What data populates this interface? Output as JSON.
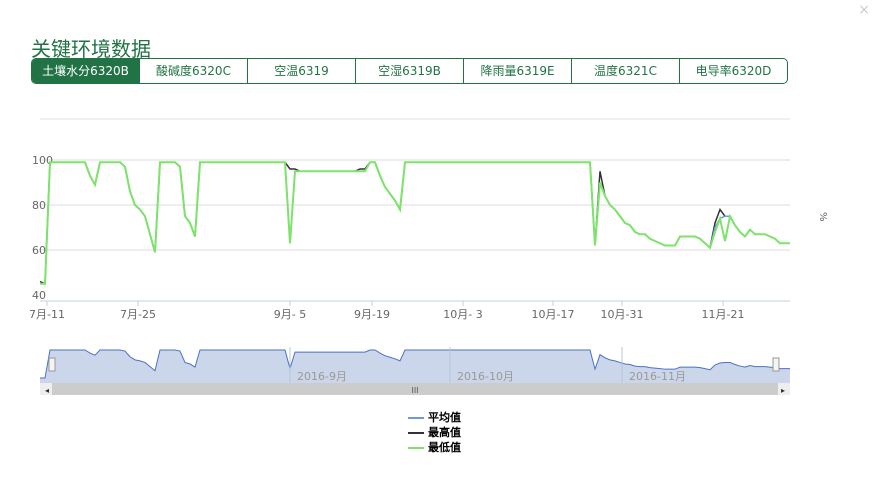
{
  "dialog": {
    "close": "×",
    "title": "关键环境数据"
  },
  "tabs": [
    {
      "label": "土壤水分6320B",
      "active": true
    },
    {
      "label": "酸碱度6320C"
    },
    {
      "label": "空温6319"
    },
    {
      "label": "空湿6319B"
    },
    {
      "label": "降雨量6319E"
    },
    {
      "label": "温度6321C"
    },
    {
      "label": "电导率6320D"
    }
  ],
  "chart_data": {
    "type": "line",
    "ylabel": "%",
    "ylim": [
      40,
      120
    ],
    "grid": true,
    "yticks": [
      40,
      60,
      80,
      100
    ],
    "xticks": [
      {
        "label": "7月-11",
        "at": 1.4
      },
      {
        "label": "7月-25",
        "at": 19.6
      },
      {
        "label": "9月- 5",
        "at": 50
      },
      {
        "label": "9月-19",
        "at": 66.4
      },
      {
        "label": "10月- 3",
        "at": 84.6
      },
      {
        "label": "10月-17",
        "at": 102.6
      },
      {
        "label": "10月-31",
        "at": 116.4
      },
      {
        "label": "11月-21",
        "at": 136.6
      }
    ],
    "navigator": {
      "labels": [
        "2016-9月",
        "2016-10月",
        "2016-11月"
      ],
      "scroll_grip": "III"
    },
    "legend_position": "bottom",
    "series": [
      {
        "name": "平均值",
        "color": "#6a9be0",
        "values": [
          45,
          45,
          99,
          99,
          99,
          99,
          99,
          99,
          99,
          99,
          93,
          89,
          99,
          99,
          99,
          99,
          99,
          97,
          86,
          80,
          78,
          75,
          67,
          59,
          99,
          99,
          99,
          99,
          97,
          75,
          72,
          66,
          99,
          99,
          99,
          99,
          99,
          99,
          99,
          99,
          99,
          99,
          99,
          99,
          99,
          99,
          99,
          99,
          99,
          99,
          63,
          95,
          95,
          95,
          95,
          95,
          95,
          95,
          95,
          95,
          95,
          95,
          95,
          95,
          95,
          95,
          99,
          99,
          93,
          88,
          85,
          82,
          78,
          99,
          99,
          99,
          99,
          99,
          99,
          99,
          99,
          99,
          99,
          99,
          99,
          99,
          99,
          99,
          99,
          99,
          99,
          99,
          99,
          99,
          99,
          99,
          99,
          99,
          99,
          99,
          99,
          99,
          99,
          99,
          99,
          99,
          99,
          99,
          99,
          99,
          99,
          62,
          90,
          84,
          80,
          78,
          75,
          72,
          71,
          68,
          67,
          67,
          65,
          64,
          63,
          62,
          62,
          62,
          66,
          66,
          66,
          66,
          65,
          63,
          61,
          70,
          74,
          75,
          75,
          71,
          68,
          66,
          69,
          67,
          67,
          67,
          66,
          65,
          63,
          63,
          63
        ]
      },
      {
        "name": "最高值",
        "color": "#333333",
        "values": [
          46,
          45,
          99,
          99,
          99,
          99,
          99,
          99,
          99,
          99,
          93,
          89,
          99,
          99,
          99,
          99,
          99,
          97,
          86,
          80,
          78,
          75,
          67,
          59,
          99,
          99,
          99,
          99,
          97,
          75,
          72,
          66,
          99,
          99,
          99,
          99,
          99,
          99,
          99,
          99,
          99,
          99,
          99,
          99,
          99,
          99,
          99,
          99,
          99,
          99,
          96,
          96,
          95,
          95,
          95,
          95,
          95,
          95,
          95,
          95,
          95,
          95,
          95,
          95,
          96,
          96,
          99,
          99,
          93,
          88,
          85,
          82,
          78,
          99,
          99,
          99,
          99,
          99,
          99,
          99,
          99,
          99,
          99,
          99,
          99,
          99,
          99,
          99,
          99,
          99,
          99,
          99,
          99,
          99,
          99,
          99,
          99,
          99,
          99,
          99,
          99,
          99,
          99,
          99,
          99,
          99,
          99,
          99,
          99,
          99,
          99,
          62,
          95,
          84,
          80,
          78,
          75,
          72,
          71,
          68,
          67,
          67,
          65,
          64,
          63,
          62,
          62,
          62,
          66,
          66,
          66,
          66,
          65,
          63,
          61,
          72,
          78,
          75,
          75,
          71,
          68,
          66,
          69,
          67,
          67,
          67,
          66,
          65,
          63,
          63,
          63
        ]
      },
      {
        "name": "最低值",
        "color": "#7de36b",
        "values": [
          45,
          45,
          99,
          99,
          99,
          99,
          99,
          99,
          99,
          99,
          93,
          89,
          99,
          99,
          99,
          99,
          99,
          97,
          86,
          80,
          78,
          75,
          67,
          59,
          99,
          99,
          99,
          99,
          97,
          75,
          72,
          66,
          99,
          99,
          99,
          99,
          99,
          99,
          99,
          99,
          99,
          99,
          99,
          99,
          99,
          99,
          99,
          99,
          99,
          99,
          63,
          95,
          95,
          95,
          95,
          95,
          95,
          95,
          95,
          95,
          95,
          95,
          95,
          95,
          95,
          95,
          99,
          99,
          93,
          88,
          85,
          82,
          78,
          99,
          99,
          99,
          99,
          99,
          99,
          99,
          99,
          99,
          99,
          99,
          99,
          99,
          99,
          99,
          99,
          99,
          99,
          99,
          99,
          99,
          99,
          99,
          99,
          99,
          99,
          99,
          99,
          99,
          99,
          99,
          99,
          99,
          99,
          99,
          99,
          99,
          99,
          62,
          90,
          84,
          80,
          78,
          75,
          72,
          71,
          68,
          67,
          67,
          65,
          64,
          63,
          62,
          62,
          62,
          66,
          66,
          66,
          66,
          65,
          63,
          61,
          68,
          74,
          64,
          75,
          71,
          68,
          66,
          69,
          67,
          67,
          67,
          66,
          65,
          63,
          63,
          63
        ]
      }
    ]
  }
}
